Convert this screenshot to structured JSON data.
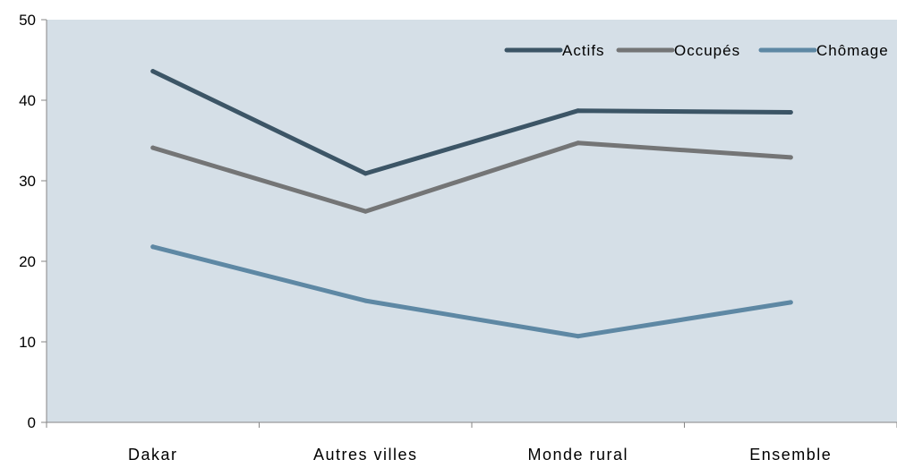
{
  "chart_data": {
    "type": "line",
    "categories": [
      "Dakar",
      "Autres villes",
      "Monde rural",
      "Ensemble"
    ],
    "ylim": [
      0,
      50
    ],
    "yticks": [
      0,
      10,
      20,
      30,
      40,
      50
    ],
    "grid": false,
    "legend_position": "top-right",
    "plot_background": "#d5dfe7",
    "series": [
      {
        "name": "Actifs",
        "values": [
          43.6,
          30.9,
          38.7,
          38.5
        ],
        "color": "#3c5566"
      },
      {
        "name": "Occupés",
        "values": [
          34.1,
          26.2,
          34.7,
          32.9
        ],
        "color": "#747576"
      },
      {
        "name": "Chômage",
        "values": [
          21.8,
          15.1,
          10.7,
          14.9
        ],
        "color": "#5e88a4"
      }
    ]
  }
}
